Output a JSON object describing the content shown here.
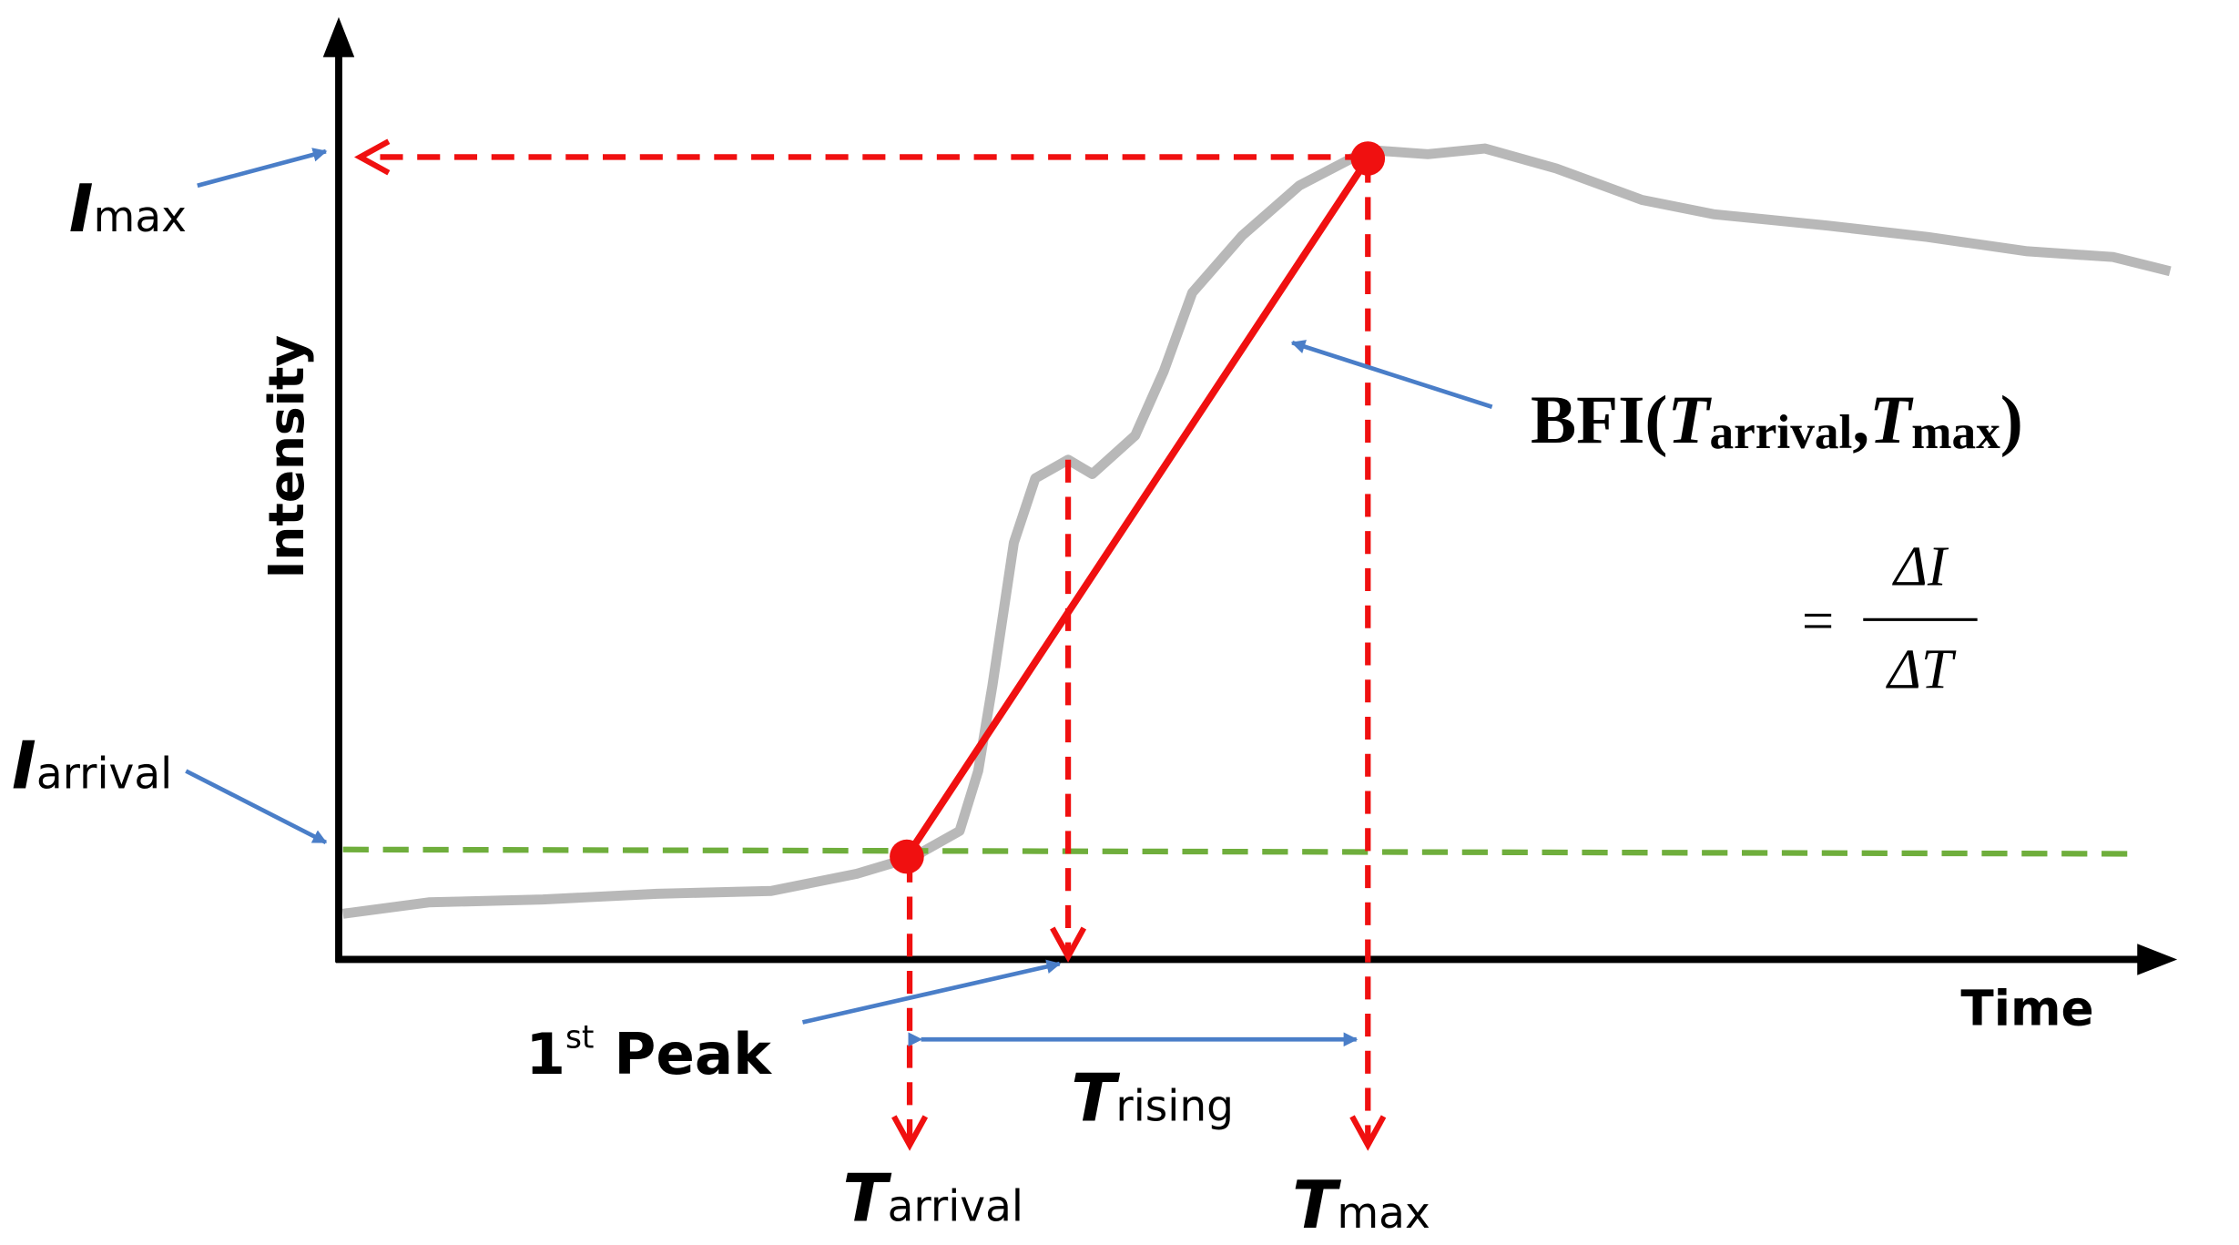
{
  "axes": {
    "y_label": "Intensity",
    "x_label": "Time"
  },
  "labels": {
    "i_max": {
      "symbol": "I",
      "subscript": "max"
    },
    "i_arrival": {
      "symbol": "I",
      "subscript": "arrival"
    },
    "first_peak": {
      "number": "1",
      "superscript": "st",
      "text": "Peak"
    },
    "t_arrival": {
      "symbol": "T",
      "subscript": "arrival"
    },
    "t_rising": {
      "symbol": "T",
      "subscript": "rising"
    },
    "t_max": {
      "symbol": "T",
      "subscript": "max"
    }
  },
  "formula": {
    "name": "BFI(",
    "t1": "T",
    "t1_sub": "arrival",
    "comma": ",",
    "t2": "T",
    "t2_sub": "max",
    "close": ")",
    "equals": "=",
    "numerator": "ΔI",
    "denominator": "ΔT"
  }
}
